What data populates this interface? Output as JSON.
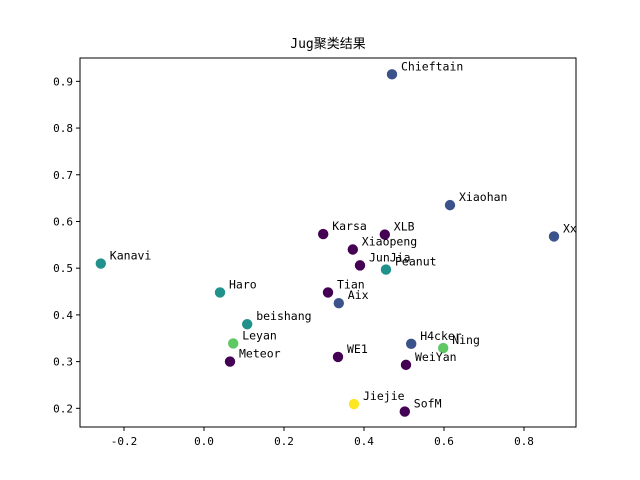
{
  "chart_data": {
    "type": "scatter",
    "title": "Jug聚类结果",
    "xlabel": "",
    "ylabel": "",
    "xlim": [
      -0.31,
      0.93
    ],
    "ylim": [
      0.16,
      0.95
    ],
    "xticks": [
      -0.2,
      0.0,
      0.2,
      0.4,
      0.6,
      0.8
    ],
    "yticks": [
      0.2,
      0.3,
      0.4,
      0.5,
      0.6,
      0.7,
      0.8,
      0.9
    ],
    "grid": false,
    "cluster_colors": {
      "0": "#440154",
      "1": "#3b528b",
      "2": "#21918c",
      "3": "#5ec962",
      "4": "#fde725"
    },
    "points": [
      {
        "label": "Chieftain",
        "x": 0.47,
        "y": 0.915,
        "cluster": 1
      },
      {
        "label": "Xiaohan",
        "x": 0.615,
        "y": 0.635,
        "cluster": 1
      },
      {
        "label": "Xx",
        "x": 0.875,
        "y": 0.568,
        "cluster": 1
      },
      {
        "label": "Karsa",
        "x": 0.298,
        "y": 0.573,
        "cluster": 0
      },
      {
        "label": "XLB",
        "x": 0.452,
        "y": 0.572,
        "cluster": 0
      },
      {
        "label": "Xiaopeng",
        "x": 0.372,
        "y": 0.54,
        "cluster": 0
      },
      {
        "label": "JunJia",
        "x": 0.39,
        "y": 0.506,
        "cluster": 0
      },
      {
        "label": "Peanut",
        "x": 0.455,
        "y": 0.497,
        "cluster": 2
      },
      {
        "label": "Kanavi",
        "x": -0.258,
        "y": 0.51,
        "cluster": 2
      },
      {
        "label": "Haro",
        "x": 0.04,
        "y": 0.448,
        "cluster": 2
      },
      {
        "label": "Tian",
        "x": 0.31,
        "y": 0.448,
        "cluster": 0
      },
      {
        "label": "Aix",
        "x": 0.337,
        "y": 0.425,
        "cluster": 1
      },
      {
        "label": "beishang",
        "x": 0.108,
        "y": 0.38,
        "cluster": 2
      },
      {
        "label": "Leyan",
        "x": 0.073,
        "y": 0.339,
        "cluster": 3
      },
      {
        "label": "H4cker",
        "x": 0.518,
        "y": 0.338,
        "cluster": 1
      },
      {
        "label": "Ning",
        "x": 0.598,
        "y": 0.329,
        "cluster": 3
      },
      {
        "label": "Meteor",
        "x": 0.065,
        "y": 0.3,
        "cluster": 0
      },
      {
        "label": "WE1",
        "x": 0.335,
        "y": 0.31,
        "cluster": 0
      },
      {
        "label": "WeiYan",
        "x": 0.505,
        "y": 0.293,
        "cluster": 0
      },
      {
        "label": "Jiejie",
        "x": 0.375,
        "y": 0.209,
        "cluster": 4
      },
      {
        "label": "SofM",
        "x": 0.502,
        "y": 0.193,
        "cluster": 0
      }
    ]
  }
}
